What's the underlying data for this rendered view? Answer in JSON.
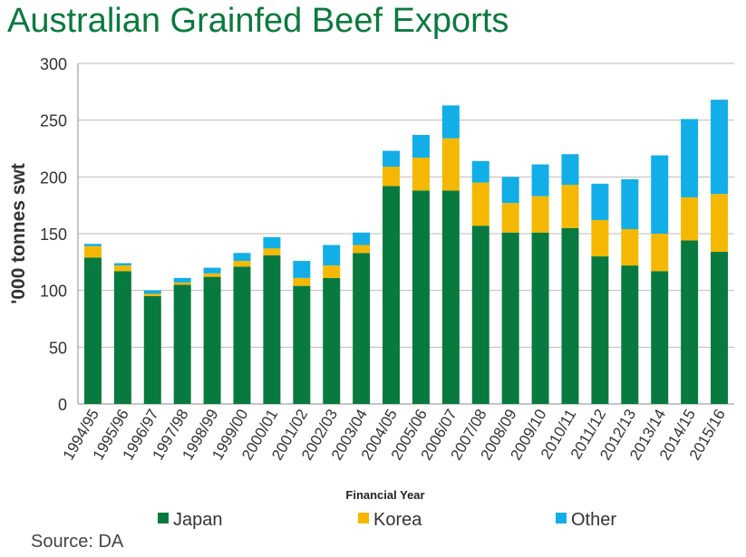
{
  "title": "Australian Grainfed Beef Exports",
  "source": "Source: DA",
  "chart_data": {
    "type": "bar",
    "stacked": true,
    "title": "Australian Grainfed Beef Exports",
    "xlabel": "Financial Year",
    "ylabel": "'000 tonnes swt",
    "ylim": [
      0,
      300
    ],
    "yticks": [
      0,
      50,
      100,
      150,
      200,
      250,
      300
    ],
    "grid": true,
    "legend": "bottom",
    "categories": [
      "1994/95",
      "1995/96",
      "1996/97",
      "1997/98",
      "1998/99",
      "1999/00",
      "2000/01",
      "2001/02",
      "2002/03",
      "2003/04",
      "2004/05",
      "2005/06",
      "2006/07",
      "2007/08",
      "2008/09",
      "2009/10",
      "2010/11",
      "2011/12",
      "2012/13",
      "2013/14",
      "2014/15",
      "2015/16"
    ],
    "series": [
      {
        "name": "Japan",
        "color": "#097a3f",
        "values": [
          129,
          117,
          95,
          105,
          112,
          121,
          131,
          104,
          111,
          133,
          192,
          188,
          188,
          157,
          151,
          151,
          155,
          130,
          122,
          117,
          144,
          134
        ]
      },
      {
        "name": "Korea",
        "color": "#f5b800",
        "values": [
          10,
          5,
          2,
          2,
          3,
          5,
          6,
          7,
          11,
          7,
          17,
          29,
          46,
          38,
          26,
          32,
          38,
          32,
          32,
          33,
          38,
          51
        ]
      },
      {
        "name": "Other",
        "color": "#12aee7",
        "values": [
          2,
          2,
          3,
          4,
          5,
          7,
          10,
          15,
          18,
          11,
          14,
          20,
          29,
          19,
          23,
          28,
          27,
          32,
          44,
          69,
          69,
          83
        ]
      }
    ]
  }
}
